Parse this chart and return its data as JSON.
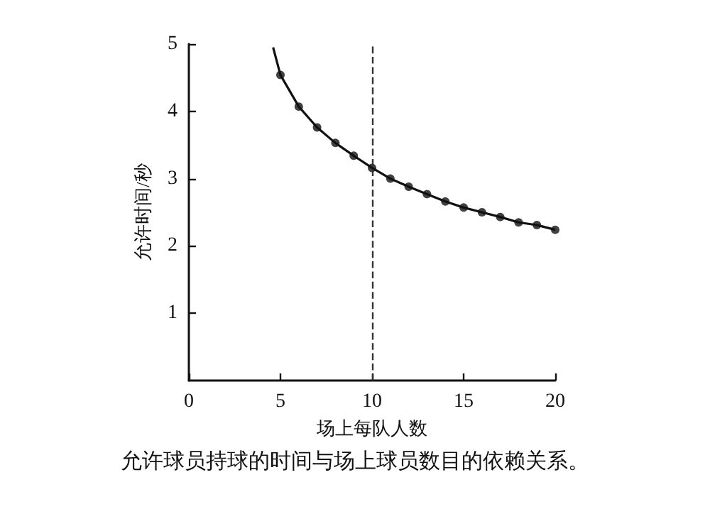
{
  "chart_data": {
    "type": "line",
    "xlabel": "场上每队人数",
    "ylabel": "允许时间/秒",
    "annotations": [
      "允许球员持球的时间与场上球员数目的依赖关系。"
    ],
    "xlim": [
      0,
      20
    ],
    "xticks": [
      0,
      5,
      10,
      15,
      20
    ],
    "ylim": [
      0,
      5
    ],
    "yticks": [
      1,
      2,
      3,
      4,
      5
    ],
    "series": [
      {
        "type": "line",
        "color": "#111111",
        "marker": "none",
        "line_style": "solid",
        "x": [
          4.6,
          5,
          6,
          7,
          8,
          9,
          10,
          11,
          12,
          13,
          14,
          15,
          16,
          17,
          18,
          19,
          20
        ],
        "values": [
          4.95,
          4.54,
          4.07,
          3.76,
          3.53,
          3.34,
          3.16,
          3.0,
          2.88,
          2.77,
          2.66,
          2.57,
          2.5,
          2.43,
          2.35,
          2.31,
          2.24
        ]
      },
      {
        "type": "scatter",
        "color": "#111111",
        "marker": "circle",
        "x": [
          5,
          6,
          7,
          8,
          9,
          10,
          11,
          12,
          13,
          14,
          15,
          16,
          17,
          18,
          19,
          20
        ],
        "values": [
          4.54,
          4.07,
          3.76,
          3.53,
          3.34,
          3.16,
          3.0,
          2.88,
          2.77,
          2.66,
          2.57,
          2.5,
          2.43,
          2.35,
          2.31,
          2.24
        ]
      }
    ],
    "ref_lines": [
      {
        "axis": "x",
        "value": 10,
        "line_style": "dashed",
        "color": "#333333"
      }
    ],
    "grid": false
  }
}
